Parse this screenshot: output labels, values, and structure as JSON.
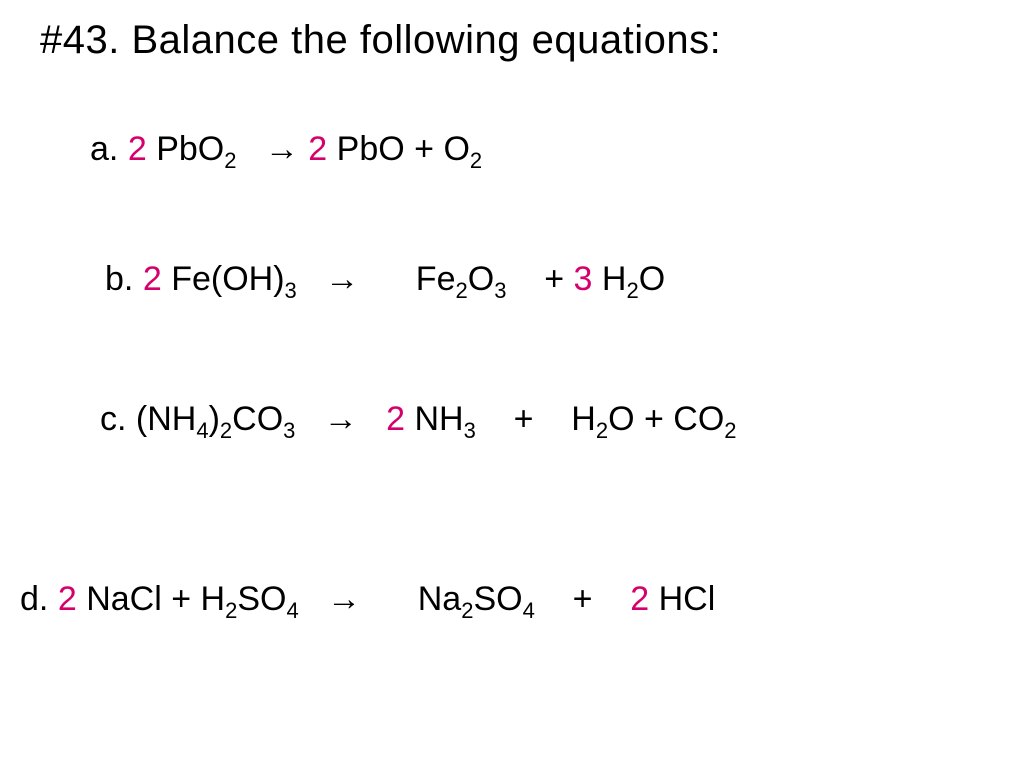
{
  "title": "#43.  Balance the following equations:",
  "coef_color": "#d6006c",
  "text_color": "#000000",
  "background_color": "#ffffff",
  "arrow_glyph": "→",
  "font_size_title": 40,
  "font_size_equation": 34,
  "font_size_subscript": 22,
  "equations": {
    "a": {
      "label": "a.",
      "tokens": [
        {
          "t": "label",
          "v": "a. "
        },
        {
          "t": "coef",
          "v": "2"
        },
        {
          "t": "sp",
          "v": " "
        },
        {
          "t": "txt",
          "v": "PbO"
        },
        {
          "t": "sub",
          "v": "2"
        },
        {
          "t": "sp",
          "v": "   "
        },
        {
          "t": "arrow",
          "v": "→"
        },
        {
          "t": "sp",
          "v": " "
        },
        {
          "t": "coef",
          "v": "2"
        },
        {
          "t": "sp",
          "v": " "
        },
        {
          "t": "txt",
          "v": "PbO   +   O"
        },
        {
          "t": "sub",
          "v": "2"
        }
      ]
    },
    "b": {
      "label": "b.",
      "tokens": [
        {
          "t": "label",
          "v": "b.  "
        },
        {
          "t": "coef",
          "v": "2"
        },
        {
          "t": "sp",
          "v": " "
        },
        {
          "t": "txt",
          "v": "Fe(OH)"
        },
        {
          "t": "sub",
          "v": "3"
        },
        {
          "t": "sp",
          "v": "   "
        },
        {
          "t": "arrow",
          "v": "→"
        },
        {
          "t": "sp",
          "v": "      "
        },
        {
          "t": "txt",
          "v": "Fe"
        },
        {
          "t": "sub",
          "v": "2"
        },
        {
          "t": "txt",
          "v": "O"
        },
        {
          "t": "sub",
          "v": "3"
        },
        {
          "t": "sp",
          "v": "    + "
        },
        {
          "t": "coef",
          "v": "3"
        },
        {
          "t": "sp",
          "v": " "
        },
        {
          "t": "txt",
          "v": "H"
        },
        {
          "t": "sub",
          "v": "2"
        },
        {
          "t": "txt",
          "v": "O"
        }
      ]
    },
    "c": {
      "label": "c.",
      "tokens": [
        {
          "t": "label",
          "v": "c.    "
        },
        {
          "t": "txt",
          "v": "(NH"
        },
        {
          "t": "sub",
          "v": "4"
        },
        {
          "t": "txt",
          "v": ")"
        },
        {
          "t": "sub",
          "v": "2"
        },
        {
          "t": "txt",
          "v": "CO"
        },
        {
          "t": "sub",
          "v": "3"
        },
        {
          "t": "sp",
          "v": "   "
        },
        {
          "t": "arrow",
          "v": "→"
        },
        {
          "t": "sp",
          "v": "   "
        },
        {
          "t": "coef",
          "v": "2"
        },
        {
          "t": "sp",
          "v": " "
        },
        {
          "t": "txt",
          "v": "NH"
        },
        {
          "t": "sub",
          "v": "3"
        },
        {
          "t": "sp",
          "v": "    +    "
        },
        {
          "t": "txt",
          "v": "H"
        },
        {
          "t": "sub",
          "v": "2"
        },
        {
          "t": "txt",
          "v": "O   +   CO"
        },
        {
          "t": "sub",
          "v": "2"
        }
      ]
    },
    "d": {
      "label": "d.",
      "tokens": [
        {
          "t": "label",
          "v": "d. "
        },
        {
          "t": "coef",
          "v": "2"
        },
        {
          "t": "sp",
          "v": " "
        },
        {
          "t": "txt",
          "v": "NaCl   +    H"
        },
        {
          "t": "sub",
          "v": "2"
        },
        {
          "t": "txt",
          "v": "SO"
        },
        {
          "t": "sub",
          "v": "4"
        },
        {
          "t": "sp",
          "v": "   "
        },
        {
          "t": "arrow",
          "v": "→"
        },
        {
          "t": "sp",
          "v": "      "
        },
        {
          "t": "txt",
          "v": "Na"
        },
        {
          "t": "sub",
          "v": "2"
        },
        {
          "t": "txt",
          "v": "SO"
        },
        {
          "t": "sub",
          "v": "4"
        },
        {
          "t": "sp",
          "v": "    +    "
        },
        {
          "t": "coef",
          "v": "2"
        },
        {
          "t": "sp",
          "v": " "
        },
        {
          "t": "txt",
          "v": "HCl"
        }
      ]
    }
  }
}
